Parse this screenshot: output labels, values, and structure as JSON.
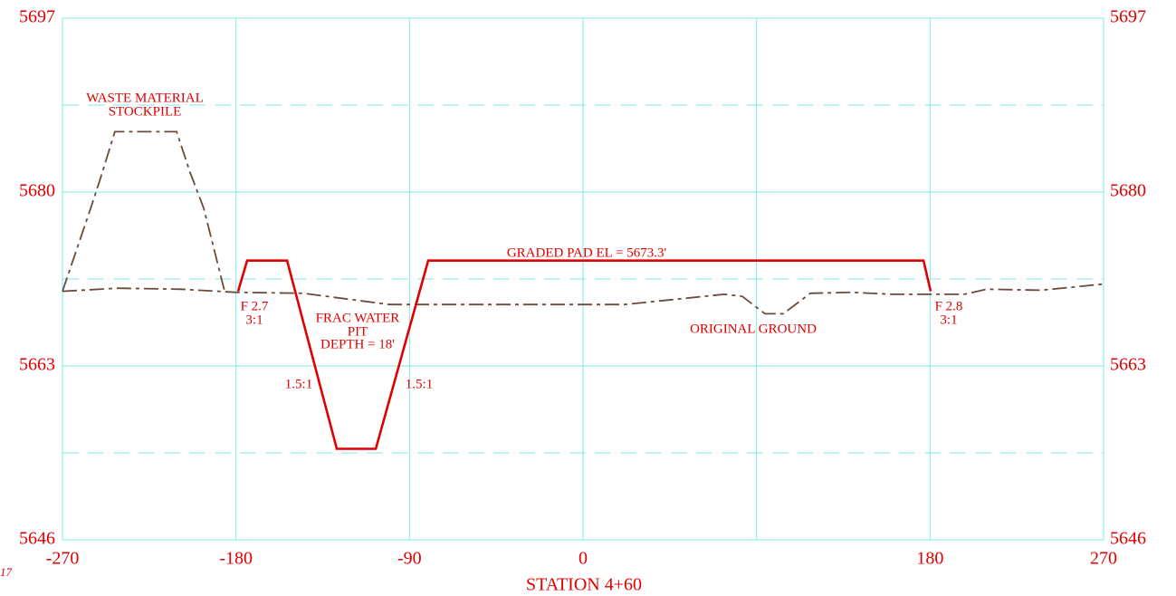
{
  "chart_data": {
    "type": "line",
    "xlabel": "STATION 4+60",
    "corner_text": "17",
    "xlim": [
      -270,
      270
    ],
    "ylim": [
      5646,
      5697
    ],
    "xticks": [
      -270,
      -180,
      -90,
      0,
      {
        "value": 90,
        "label": null
      },
      180,
      270
    ],
    "yticks": [
      5646,
      5663,
      5680,
      5697
    ],
    "y_minor_grid": [
      5654.5,
      5671.5,
      5688.5
    ],
    "grid": true,
    "grid_color": "#7fe8ec",
    "tick_color": "#e00000",
    "series": [
      {
        "color": "#6b4a3a",
        "dashed": true,
        "x": [
          -270,
          -241.4,
          -208.5,
          -180.3,
          -145.1,
          -100.5,
          21.6,
          73.3,
          82.6,
          94.4,
          103.8,
          117.9,
          139.0,
          160.1,
          197.7,
          209.4,
          237.6,
          270
        ],
        "values": [
          5670.3,
          5670.6,
          5670.5,
          5670.2,
          5670.1,
          5669.0,
          5669.0,
          5670.0,
          5669.8,
          5668.1,
          5668.1,
          5670.1,
          5670.2,
          5670.0,
          5670.0,
          5670.5,
          5670.4,
          5671.0
        ]
      },
      {
        "color": "#6b4a3a",
        "dashed": true,
        "x": [
          -270,
          -255.4,
          -250.7,
          -242.8,
          -210.8,
          -203.8,
          -196.7,
          -185.9
        ],
        "values": [
          5670.3,
          5678.4,
          5681.1,
          5685.9,
          5685.9,
          5681.9,
          5678.4,
          5670.3
        ]
      },
      {
        "color": "#e00000",
        "dashed": false,
        "x": [
          -178.9,
          -174.2,
          -153.5,
          -127.7,
          -107.5,
          -80.3,
          176.6,
          180.3
        ],
        "values": [
          5670.3,
          5673.3,
          5673.3,
          5654.9,
          5654.9,
          5673.3,
          5673.3,
          5670.3
        ]
      }
    ],
    "annotations": [
      "WASTE MATERIAL",
      "STOCKPILE",
      "GRADED PAD EL = 5673.3'",
      "F 2.7",
      "3:1",
      "FRAC WATER",
      "PIT",
      "DEPTH = 18'",
      "1.5:1",
      "1.5:1",
      "ORIGINAL GROUND",
      "F 2.8",
      "3:1"
    ]
  }
}
